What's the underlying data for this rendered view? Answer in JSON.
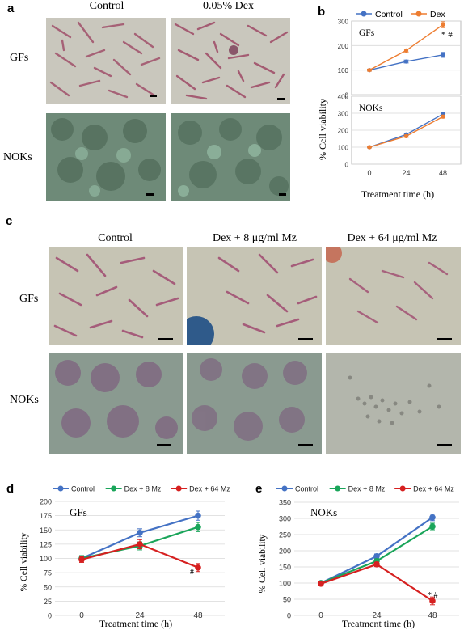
{
  "panel_a": {
    "label": "a",
    "col_control": "Control",
    "col_dex": "0.05% Dex",
    "row_gfs": "GFs",
    "row_noks": "NOKs"
  },
  "panel_b": {
    "label": "b",
    "legend_control": "Control",
    "legend_dex": "Dex",
    "ylabel": "% Cell viability",
    "xlabel": "Treatment time (h)",
    "sub1_title": "GFs",
    "sub2_title": "NOKs",
    "sig": "* #"
  },
  "panel_c": {
    "label": "c",
    "col1": "Control",
    "col2": "Dex + 8 μg/ml Mz",
    "col3": "Dex + 64 μg/ml Mz",
    "row_gfs": "GFs",
    "row_noks": "NOKs"
  },
  "panel_d": {
    "label": "d",
    "sig": "#"
  },
  "panel_e": {
    "label": "e",
    "sig": "* #"
  },
  "colors": {
    "control": "#4472c4",
    "dex": "#ed7d31",
    "mz8": "#1aa55a",
    "mz64": "#d62020"
  },
  "chart_data": [
    {
      "id": "b-gfs",
      "type": "line",
      "title": "GFs",
      "x": [
        0,
        24,
        48
      ],
      "ylim": [
        0,
        300
      ],
      "yticks": [
        0,
        100,
        200,
        300
      ],
      "series": [
        {
          "name": "Control",
          "values": [
            100,
            135,
            162
          ],
          "err": [
            4,
            6,
            10
          ]
        },
        {
          "name": "Dex",
          "values": [
            100,
            180,
            285
          ],
          "err": [
            4,
            6,
            12
          ]
        }
      ]
    },
    {
      "id": "b-noks",
      "type": "line",
      "title": "NOKs",
      "x": [
        0,
        24,
        48
      ],
      "ylim": [
        0,
        400
      ],
      "yticks": [
        0,
        100,
        200,
        300,
        400
      ],
      "series": [
        {
          "name": "Control",
          "values": [
            100,
            175,
            295
          ],
          "err": [
            4,
            7,
            9
          ]
        },
        {
          "name": "Dex",
          "values": [
            100,
            165,
            280
          ],
          "err": [
            4,
            7,
            9
          ]
        }
      ]
    },
    {
      "id": "d",
      "type": "line",
      "title": "GFs",
      "xlabel": "Treatment time (h)",
      "ylabel": "% Cell viability",
      "x": [
        0,
        24,
        48
      ],
      "ylim": [
        0,
        200
      ],
      "yticks": [
        0,
        25,
        50,
        75,
        100,
        125,
        150,
        175,
        200
      ],
      "series": [
        {
          "name": "Control",
          "values": [
            100,
            145,
            175
          ],
          "err": [
            5,
            7,
            8
          ]
        },
        {
          "name": "Dex + 8 Mz",
          "values": [
            100,
            122,
            155
          ],
          "err": [
            5,
            7,
            8
          ]
        },
        {
          "name": "Dex + 64 Mz",
          "values": [
            98,
            125,
            84
          ],
          "err": [
            5,
            8,
            7
          ]
        }
      ]
    },
    {
      "id": "e",
      "type": "line",
      "title": "NOKs",
      "xlabel": "Treatment time (h)",
      "ylabel": "% Cell viability",
      "x": [
        0,
        24,
        48
      ],
      "ylim": [
        0,
        350
      ],
      "yticks": [
        0,
        50,
        100,
        150,
        200,
        250,
        300,
        350
      ],
      "series": [
        {
          "name": "Control",
          "values": [
            100,
            183,
            303
          ],
          "err": [
            5,
            7,
            10
          ]
        },
        {
          "name": "Dex + 8 Mz",
          "values": [
            100,
            168,
            275
          ],
          "err": [
            5,
            7,
            10
          ]
        },
        {
          "name": "Dex + 64 Mz",
          "values": [
            98,
            158,
            45
          ],
          "err": [
            5,
            7,
            12
          ]
        }
      ]
    }
  ]
}
